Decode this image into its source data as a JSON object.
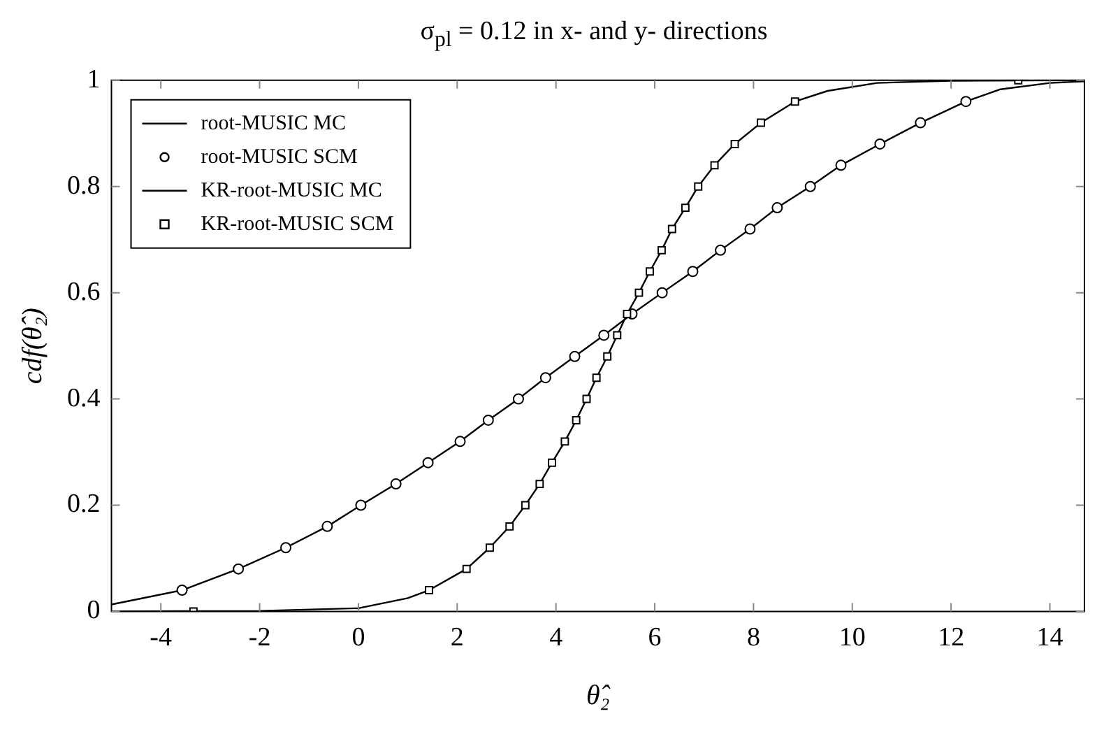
{
  "chart_data": {
    "type": "line",
    "title": "σ$_{pl}$ = 0.12 in x- and y- directions",
    "xlabel": "θ̂₂",
    "ylabel": "cdf(θ̂₂)",
    "xlim": [
      -5,
      14.7
    ],
    "xticks": [
      -4,
      -2,
      0,
      2,
      4,
      6,
      8,
      10,
      12,
      14
    ],
    "ylim": [
      0,
      1
    ],
    "yticks": [
      0,
      0.2,
      0.4,
      0.6,
      0.8,
      1
    ],
    "grid": false,
    "legend": "top left",
    "series": [
      {
        "name": "root-MUSIC MC",
        "type": "line",
        "marker": "none",
        "color": "#000000",
        "x": [
          -5,
          -3.57,
          -2.43,
          -1.47,
          -0.63,
          0.05,
          0.76,
          1.41,
          2.06,
          2.63,
          3.24,
          3.79,
          4.38,
          4.97,
          5.54,
          6.15,
          6.77,
          7.33,
          7.93,
          8.48,
          9.15,
          9.77,
          10.56,
          11.38,
          12.3,
          13,
          14,
          14.7
        ],
        "values": [
          0.013,
          0.04,
          0.08,
          0.12,
          0.16,
          0.2,
          0.24,
          0.28,
          0.32,
          0.36,
          0.4,
          0.44,
          0.48,
          0.52,
          0.56,
          0.6,
          0.64,
          0.68,
          0.72,
          0.76,
          0.8,
          0.84,
          0.88,
          0.92,
          0.96,
          0.983,
          0.995,
          0.998
        ]
      },
      {
        "name": "root-MUSIC SCM",
        "type": "scatter",
        "marker": "circle",
        "color": "#000000",
        "x": [
          -3.57,
          -2.43,
          -1.47,
          -0.63,
          0.05,
          0.76,
          1.41,
          2.06,
          2.63,
          3.24,
          3.79,
          4.38,
          4.97,
          5.54,
          6.15,
          6.77,
          7.33,
          7.93,
          8.48,
          9.15,
          9.77,
          10.56,
          11.38,
          12.3
        ],
        "values": [
          0.04,
          0.08,
          0.12,
          0.16,
          0.2,
          0.24,
          0.28,
          0.32,
          0.36,
          0.4,
          0.44,
          0.48,
          0.52,
          0.56,
          0.6,
          0.64,
          0.68,
          0.72,
          0.76,
          0.8,
          0.84,
          0.88,
          0.92,
          0.96
        ]
      },
      {
        "name": "KR-root-MUSIC MC",
        "type": "line",
        "marker": "none",
        "color": "#000000",
        "x": [
          -5,
          -2,
          0,
          1,
          1.43,
          2.19,
          2.66,
          3.06,
          3.38,
          3.67,
          3.92,
          4.18,
          4.41,
          4.62,
          4.82,
          5.04,
          5.24,
          5.44,
          5.68,
          5.9,
          6.14,
          6.35,
          6.62,
          6.88,
          7.21,
          7.62,
          8.15,
          8.84,
          9.5,
          10.5,
          12,
          14.7
        ],
        "values": [
          0,
          0.001,
          0.006,
          0.025,
          0.04,
          0.08,
          0.12,
          0.16,
          0.2,
          0.24,
          0.28,
          0.32,
          0.36,
          0.4,
          0.44,
          0.48,
          0.52,
          0.56,
          0.6,
          0.64,
          0.68,
          0.72,
          0.76,
          0.8,
          0.84,
          0.88,
          0.92,
          0.96,
          0.98,
          0.995,
          0.999,
          1
        ]
      },
      {
        "name": "KR-root-MUSIC SCM",
        "type": "scatter",
        "marker": "square",
        "color": "#000000",
        "x": [
          -3.34,
          1.43,
          2.19,
          2.66,
          3.06,
          3.38,
          3.67,
          3.92,
          4.18,
          4.41,
          4.62,
          4.82,
          5.04,
          5.24,
          5.44,
          5.68,
          5.9,
          6.14,
          6.35,
          6.62,
          6.88,
          7.21,
          7.62,
          8.15,
          8.84,
          13.36
        ],
        "values": [
          0,
          0.04,
          0.08,
          0.12,
          0.16,
          0.2,
          0.24,
          0.28,
          0.32,
          0.36,
          0.4,
          0.44,
          0.48,
          0.52,
          0.56,
          0.6,
          0.64,
          0.68,
          0.72,
          0.76,
          0.8,
          0.84,
          0.88,
          0.92,
          0.96,
          1
        ]
      }
    ]
  }
}
